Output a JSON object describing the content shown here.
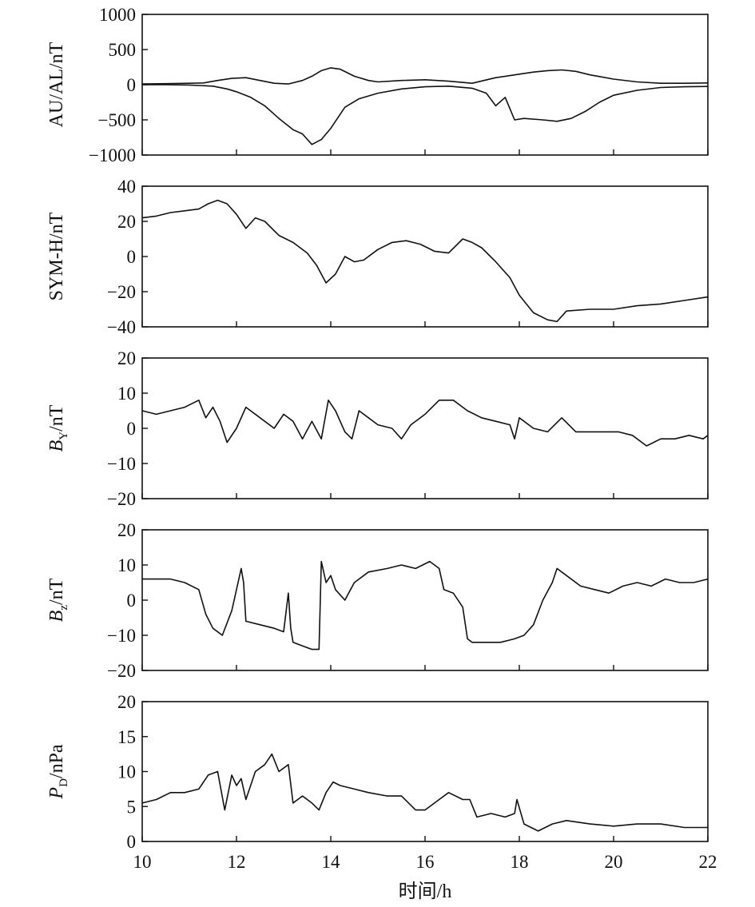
{
  "chart_data": [
    {
      "type": "line",
      "ylabel": "AU/AL/nT",
      "ylim": [
        -1000,
        1000
      ],
      "yticks": [
        "1000",
        "500",
        "0",
        "−500",
        "−1000"
      ],
      "ytick_values": [
        1000,
        500,
        0,
        -500,
        -1000
      ],
      "series": [
        {
          "x": [
            10.0,
            10.5,
            11.0,
            11.3,
            11.6,
            11.9,
            12.2,
            12.5,
            12.8,
            13.1,
            13.4,
            13.6,
            13.8,
            14.0,
            14.2,
            14.5,
            14.8,
            15.0,
            15.5,
            16.0,
            16.5,
            17.0,
            17.5,
            18.0,
            18.3,
            18.6,
            18.9,
            19.2,
            19.5,
            20.0,
            20.5,
            21.0,
            21.5,
            22.0
          ],
          "values": [
            10,
            15,
            20,
            25,
            60,
            90,
            100,
            60,
            20,
            10,
            60,
            120,
            200,
            240,
            220,
            120,
            60,
            40,
            60,
            70,
            50,
            20,
            100,
            150,
            180,
            200,
            210,
            190,
            140,
            80,
            40,
            20,
            20,
            25
          ]
        },
        {
          "x": [
            10.0,
            10.5,
            11.0,
            11.5,
            11.8,
            12.0,
            12.3,
            12.6,
            12.9,
            13.2,
            13.4,
            13.6,
            13.8,
            14.0,
            14.3,
            14.6,
            15.0,
            15.5,
            16.0,
            16.5,
            17.0,
            17.3,
            17.5,
            17.7,
            17.9,
            18.1,
            18.5,
            18.8,
            19.1,
            19.4,
            19.7,
            20.0,
            20.5,
            21.0,
            21.5,
            22.0
          ],
          "values": [
            0,
            0,
            -5,
            -20,
            -60,
            -100,
            -180,
            -300,
            -480,
            -640,
            -700,
            -850,
            -780,
            -620,
            -320,
            -200,
            -120,
            -60,
            -30,
            -20,
            -50,
            -120,
            -300,
            -180,
            -500,
            -480,
            -500,
            -520,
            -480,
            -380,
            -250,
            -150,
            -80,
            -40,
            -30,
            -25
          ]
        }
      ]
    },
    {
      "type": "line",
      "ylabel": "SYM-H/nT",
      "ylim": [
        -40,
        40
      ],
      "yticks": [
        "40",
        "20",
        "0",
        "−20",
        "−40"
      ],
      "ytick_values": [
        40,
        20,
        0,
        -20,
        -40
      ],
      "series": [
        {
          "x": [
            10.0,
            10.3,
            10.6,
            10.9,
            11.2,
            11.4,
            11.6,
            11.8,
            12.0,
            12.2,
            12.4,
            12.6,
            12.9,
            13.2,
            13.5,
            13.7,
            13.9,
            14.1,
            14.3,
            14.5,
            14.7,
            15.0,
            15.3,
            15.6,
            15.9,
            16.2,
            16.5,
            16.8,
            17.0,
            17.2,
            17.5,
            17.8,
            18.0,
            18.3,
            18.6,
            18.8,
            19.0,
            19.5,
            20.0,
            20.5,
            21.0,
            21.5,
            22.0
          ],
          "values": [
            22,
            23,
            25,
            26,
            27,
            30,
            32,
            30,
            24,
            16,
            22,
            20,
            12,
            8,
            2,
            -5,
            -15,
            -10,
            0,
            -3,
            -2,
            4,
            8,
            9,
            7,
            3,
            2,
            10,
            8,
            5,
            -3,
            -12,
            -22,
            -32,
            -36,
            -37,
            -31,
            -30,
            -30,
            -28,
            -27,
            -25,
            -23
          ]
        }
      ]
    },
    {
      "type": "line",
      "ylabel_main": "B",
      "ylabel_sub": "Y",
      "ylabel_rest": "/nT",
      "ylim": [
        -20,
        20
      ],
      "yticks": [
        "20",
        "10",
        "0",
        "−10",
        "−20"
      ],
      "ytick_values": [
        20,
        10,
        0,
        -10,
        -20
      ],
      "series": [
        {
          "x": [
            10.0,
            10.3,
            10.6,
            10.9,
            11.2,
            11.35,
            11.5,
            11.65,
            11.8,
            12.0,
            12.2,
            12.5,
            12.8,
            13.0,
            13.2,
            13.4,
            13.6,
            13.8,
            13.95,
            14.1,
            14.3,
            14.45,
            14.6,
            14.8,
            15.0,
            15.3,
            15.5,
            15.7,
            16.0,
            16.3,
            16.6,
            16.9,
            17.2,
            17.5,
            17.8,
            17.9,
            18.0,
            18.3,
            18.6,
            18.9,
            19.2,
            19.5,
            19.8,
            20.1,
            20.4,
            20.7,
            21.0,
            21.3,
            21.6,
            21.9,
            22.0
          ],
          "values": [
            5,
            4,
            5,
            6,
            8,
            3,
            6,
            2,
            -4,
            0,
            6,
            3,
            0,
            4,
            2,
            -3,
            2,
            -3,
            8,
            5,
            -1,
            -3,
            5,
            3,
            1,
            0,
            -3,
            1,
            4,
            8,
            8,
            5,
            3,
            2,
            1,
            -3,
            3,
            0,
            -1,
            3,
            -1,
            -1,
            -1,
            -1,
            -2,
            -5,
            -3,
            -3,
            -2,
            -3,
            -2
          ]
        }
      ]
    },
    {
      "type": "line",
      "ylabel_main": "B",
      "ylabel_sub": "z",
      "ylabel_rest": "/nT",
      "ylim": [
        -20,
        20
      ],
      "yticks": [
        "20",
        "10",
        "0",
        "−10",
        "−20"
      ],
      "ytick_values": [
        20,
        10,
        0,
        -10,
        -20
      ],
      "series": [
        {
          "x": [
            10.0,
            10.3,
            10.6,
            10.9,
            11.2,
            11.35,
            11.5,
            11.7,
            11.9,
            12.0,
            12.1,
            12.15,
            12.2,
            12.5,
            12.8,
            13.0,
            13.1,
            13.15,
            13.2,
            13.4,
            13.6,
            13.75,
            13.8,
            13.9,
            14.0,
            14.1,
            14.3,
            14.5,
            14.8,
            15.2,
            15.5,
            15.8,
            16.1,
            16.3,
            16.4,
            16.6,
            16.8,
            16.9,
            17.0,
            17.3,
            17.6,
            17.9,
            18.1,
            18.3,
            18.5,
            18.7,
            18.8,
            19.0,
            19.3,
            19.6,
            19.9,
            20.2,
            20.5,
            20.8,
            21.1,
            21.4,
            21.7,
            22.0
          ],
          "values": [
            6,
            6,
            6,
            5,
            3,
            -4,
            -8,
            -10,
            -3,
            3,
            9,
            5,
            -6,
            -7,
            -8,
            -9,
            2,
            -8,
            -12,
            -13,
            -14,
            -14,
            11,
            5,
            7,
            3,
            0,
            5,
            8,
            9,
            10,
            9,
            11,
            9,
            3,
            2,
            -2,
            -11,
            -12,
            -12,
            -12,
            -11,
            -10,
            -7,
            0,
            5,
            9,
            7,
            4,
            3,
            2,
            4,
            5,
            4,
            6,
            5,
            5,
            6
          ]
        }
      ]
    },
    {
      "type": "line",
      "ylabel_main": "P",
      "ylabel_sub": "D",
      "ylabel_rest": "/nPa",
      "ylim": [
        0,
        20
      ],
      "yticks": [
        "20",
        "15",
        "10",
        "5",
        "0"
      ],
      "ytick_values": [
        20,
        15,
        10,
        5,
        0
      ],
      "xticks": [
        "10",
        "12",
        "14",
        "16",
        "18",
        "20",
        "22"
      ],
      "xtick_values": [
        10,
        12,
        14,
        16,
        18,
        20,
        22
      ],
      "xlabel": "时间/h",
      "series": [
        {
          "x": [
            10.0,
            10.3,
            10.6,
            10.9,
            11.2,
            11.4,
            11.6,
            11.75,
            11.9,
            12.0,
            12.1,
            12.2,
            12.4,
            12.6,
            12.75,
            12.9,
            13.1,
            13.2,
            13.4,
            13.6,
            13.75,
            13.9,
            14.05,
            14.2,
            14.5,
            14.8,
            15.2,
            15.5,
            15.8,
            16.0,
            16.3,
            16.5,
            16.8,
            16.95,
            17.1,
            17.4,
            17.7,
            17.9,
            17.95,
            18.1,
            18.4,
            18.7,
            19.0,
            19.5,
            20.0,
            20.5,
            21.0,
            21.5,
            22.0
          ],
          "values": [
            5.5,
            6,
            7,
            7,
            7.5,
            9.5,
            10,
            4.5,
            9.5,
            8,
            9,
            6,
            10,
            11,
            12.5,
            10,
            11,
            5.5,
            6.5,
            5.5,
            4.5,
            7,
            8.5,
            8,
            7.5,
            7,
            6.5,
            6.5,
            4.5,
            4.5,
            6,
            7,
            6,
            6,
            3.5,
            4,
            3.5,
            4,
            6,
            2.5,
            1.5,
            2.5,
            3,
            2.5,
            2.2,
            2.5,
            2.5,
            2,
            2
          ]
        }
      ]
    }
  ]
}
